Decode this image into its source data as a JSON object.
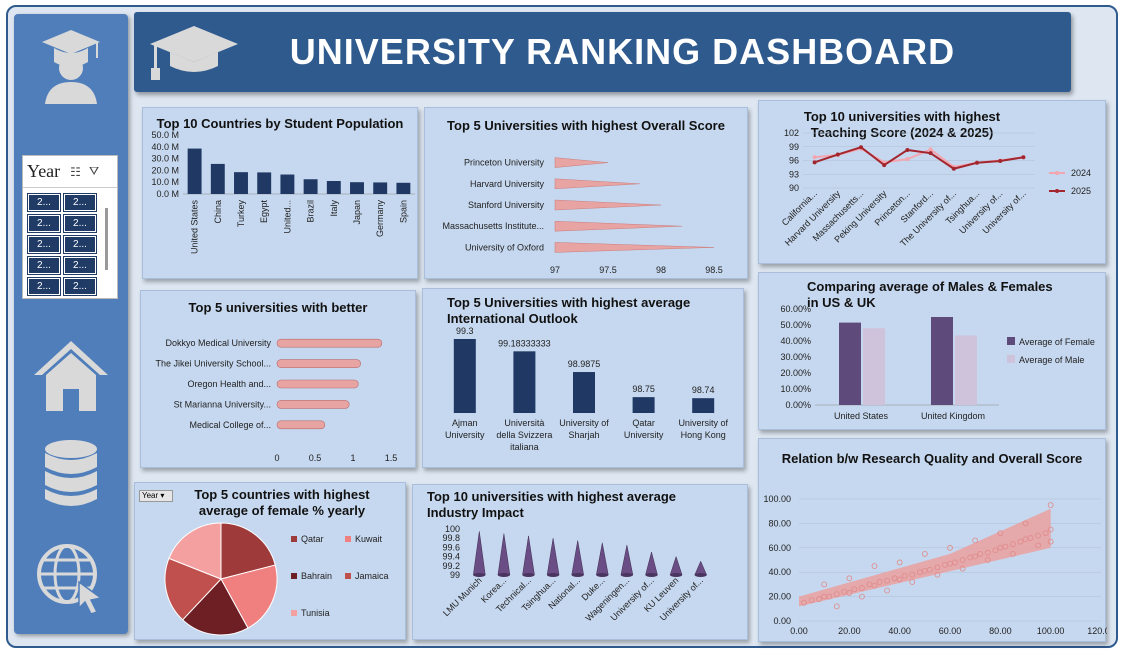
{
  "header": {
    "title": "UNIVERSITY RANKING DASHBOARD"
  },
  "slicer": {
    "title": "Year",
    "items": [
      "2...",
      "2...",
      "2...",
      "2...",
      "2...",
      "2...",
      "2...",
      "2...",
      "2...",
      "2..."
    ]
  },
  "sidebar": {
    "icons": [
      "graduate-icon",
      "home-icon",
      "database-icon",
      "globe-cursor-icon"
    ]
  },
  "colors": {
    "navy": "#1f3864",
    "pink": "#e8a3a3",
    "dark_red": "#a33a3a",
    "purple": "#5f4b7b",
    "lavender": "#cfc3dc"
  },
  "chart_data": [
    {
      "id": "student_population",
      "type": "bar",
      "title": "Top 10 Countries by Student Population",
      "categories": [
        "United States",
        "China",
        "Turkey",
        "Egypt",
        "United...",
        "Brazil",
        "Italy",
        "Japan",
        "Germany",
        "Spain"
      ],
      "values": [
        38.5,
        25.5,
        18.5,
        18.3,
        16.5,
        12.5,
        11.0,
        10.0,
        9.8,
        9.5
      ],
      "yticks": [
        "0.0 M",
        "10.0 M",
        "20.0 M",
        "30.0 M",
        "40.0 M",
        "50.0 M"
      ],
      "ylim": [
        0,
        50
      ]
    },
    {
      "id": "overall_score",
      "type": "bar",
      "title": "Top 5 Universities with highest Overall Score",
      "categories": [
        "Princeton University",
        "Harvard University",
        "Stanford University",
        "Massachusetts Institute...",
        "University of Oxford"
      ],
      "values": [
        97.5,
        97.8,
        98.0,
        98.2,
        98.5
      ],
      "xticks": [
        "97",
        "97.5",
        "98",
        "98.5"
      ],
      "xlim": [
        97,
        98.5
      ]
    },
    {
      "id": "teaching_score",
      "type": "line",
      "title": "Top 10 universities with highest Teaching Score (2024 & 2025)",
      "categories": [
        "California...",
        "Harvard University",
        "Massachusetts...",
        "Peking University",
        "Princeton...",
        "Stanford...",
        "The University of...",
        "Tsinghua...",
        "University of...",
        "University of..."
      ],
      "series": [
        {
          "name": "2024",
          "values": [
            96.7,
            97.2,
            98.6,
            95.6,
            96.3,
            98.4,
            94.6,
            95.5,
            96.0,
            96.7
          ]
        },
        {
          "name": "2025",
          "values": [
            95.6,
            97.3,
            98.9,
            95.0,
            98.3,
            97.6,
            94.2,
            95.5,
            95.9,
            96.7
          ]
        }
      ],
      "yticks": [
        "90",
        "93",
        "96",
        "99",
        "102"
      ],
      "ylim": [
        90,
        102
      ]
    },
    {
      "id": "better",
      "type": "bar",
      "title": "Top 5 universities with better",
      "categories": [
        "Dokkyo Medical University",
        "The Jikei University School...",
        "Oregon Health and...",
        "St Marianna University...",
        "Medical College of..."
      ],
      "values": [
        1.38,
        1.1,
        1.07,
        0.95,
        0.63
      ],
      "xticks": [
        "0",
        "0.5",
        "1",
        "1.5"
      ],
      "xlim": [
        0,
        1.5
      ]
    },
    {
      "id": "international_outlook",
      "type": "bar",
      "title": "Top 5 Universities with highest average International Outlook",
      "categories": [
        "Ajman University",
        "Università della Svizzera italiana",
        "University of Sharjah",
        "Qatar University",
        "University of Hong Kong"
      ],
      "values": [
        99.3,
        99.18333333,
        98.9875,
        98.75,
        98.74
      ],
      "labels": [
        "99.3",
        "99.18333333",
        "98.9875",
        "98.75",
        "98.74"
      ]
    },
    {
      "id": "gender_avg",
      "type": "bar",
      "title": "Comparing average of Males & Females in US & UK",
      "categories": [
        "United States",
        "United Kingdom"
      ],
      "series": [
        {
          "name": "Average of Female",
          "values": [
            51.5,
            55.0
          ]
        },
        {
          "name": "Average of Male",
          "values": [
            48.0,
            43.5
          ]
        }
      ],
      "yticks": [
        "0.00%",
        "10.00%",
        "20.00%",
        "30.00%",
        "40.00%",
        "50.00%",
        "60.00%"
      ],
      "ylim": [
        0,
        60
      ]
    },
    {
      "id": "female_pct",
      "type": "pie",
      "title": "Top 5 countries with highest average of female % yearly",
      "filter_label": "Year",
      "categories": [
        "Qatar",
        "Kuwait",
        "Bahrain",
        "Jamaica",
        "Tunisia"
      ],
      "values": [
        21,
        21,
        20,
        19,
        19
      ],
      "colors": [
        "#9e3a3a",
        "#f08080",
        "#6e1f24",
        "#c0504d",
        "#f4a0a0"
      ]
    },
    {
      "id": "industry_impact",
      "type": "bar",
      "title": "Top 10 universities with highest average Industry Impact",
      "categories": [
        "LMU Munich",
        "Korea...",
        "Technical...",
        "Tsinghua...",
        "National...",
        "Duke...",
        "Wageningen...",
        "University of...",
        "KU Leuven",
        "University of..."
      ],
      "values": [
        99.95,
        99.9,
        99.85,
        99.8,
        99.75,
        99.7,
        99.65,
        99.5,
        99.4,
        99.3
      ],
      "yticks": [
        "99",
        "99.2",
        "99.4",
        "99.6",
        "99.8",
        "100"
      ],
      "ylim": [
        99,
        100
      ]
    },
    {
      "id": "research_overall",
      "type": "scatter",
      "title": "Relation b/w Research Quality and Overall Score",
      "xticks": [
        "0.00",
        "20.00",
        "40.00",
        "60.00",
        "80.00",
        "100.00",
        "120.00"
      ],
      "yticks": [
        "0.00",
        "20.00",
        "40.00",
        "60.00",
        "80.00",
        "100.00"
      ],
      "xlim": [
        0,
        120
      ],
      "ylim": [
        0,
        100
      ],
      "x": [
        2,
        5,
        8,
        10,
        12,
        15,
        18,
        20,
        22,
        25,
        28,
        30,
        32,
        35,
        38,
        40,
        42,
        45,
        48,
        50,
        52,
        55,
        58,
        60,
        62,
        65,
        68,
        70,
        72,
        75,
        78,
        80,
        82,
        85,
        88,
        90,
        92,
        95,
        98,
        100,
        10,
        20,
        30,
        40,
        50,
        60,
        70,
        80,
        90,
        100,
        15,
        25,
        35,
        45,
        55,
        65,
        75,
        85,
        95,
        100
      ],
      "y": [
        15,
        17,
        18,
        20,
        20,
        22,
        24,
        23,
        26,
        27,
        30,
        29,
        32,
        33,
        35,
        34,
        37,
        38,
        40,
        41,
        42,
        44,
        46,
        47,
        48,
        50,
        52,
        53,
        55,
        56,
        58,
        60,
        61,
        63,
        65,
        67,
        68,
        70,
        72,
        75,
        30,
        35,
        45,
        48,
        55,
        60,
        66,
        72,
        80,
        95,
        12,
        20,
        25,
        32,
        38,
        43,
        50,
        55,
        62,
        65
      ]
    }
  ]
}
